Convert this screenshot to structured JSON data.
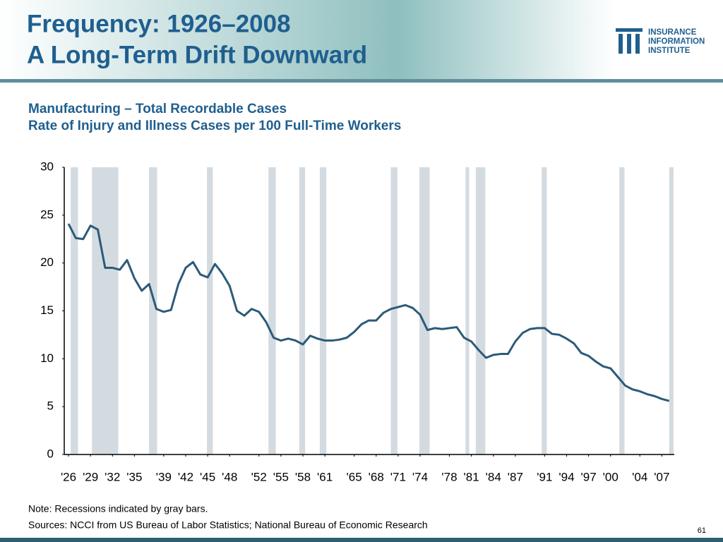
{
  "header": {
    "title_line1": "Frequency: 1926–2008",
    "title_line2": "A Long-Term Drift Downward",
    "logo": [
      "INSURANCE",
      "INFORMATION",
      "INSTITUTE"
    ]
  },
  "chart_data": {
    "type": "line",
    "title": "Manufacturing – Total Recordable Cases",
    "subtitle": "Rate of Injury and Illness Cases per 100 Full-Time Workers",
    "x": [
      1926,
      1927,
      1928,
      1929,
      1930,
      1931,
      1932,
      1933,
      1934,
      1935,
      1936,
      1937,
      1938,
      1939,
      1940,
      1941,
      1942,
      1943,
      1944,
      1945,
      1946,
      1947,
      1948,
      1949,
      1950,
      1951,
      1952,
      1953,
      1954,
      1955,
      1956,
      1957,
      1958,
      1959,
      1960,
      1961,
      1962,
      1963,
      1964,
      1965,
      1966,
      1967,
      1968,
      1969,
      1970,
      1971,
      1972,
      1973,
      1974,
      1975,
      1976,
      1977,
      1978,
      1979,
      1980,
      1981,
      1982,
      1983,
      1984,
      1985,
      1986,
      1987,
      1988,
      1989,
      1990,
      1991,
      1992,
      1993,
      1994,
      1995,
      1996,
      1997,
      1998,
      1999,
      2000,
      2001,
      2002,
      2003,
      2004,
      2005,
      2006,
      2007,
      2008
    ],
    "series": [
      {
        "color": "#2c5a7a",
        "values": [
          24.1,
          22.6,
          22.5,
          23.9,
          23.5,
          19.5,
          19.5,
          19.3,
          20.3,
          18.4,
          17.1,
          17.8,
          15.2,
          14.9,
          15.1,
          17.8,
          19.5,
          20.1,
          18.8,
          18.5,
          19.9,
          18.9,
          17.6,
          15.0,
          14.5,
          15.2,
          14.9,
          13.8,
          12.2,
          11.9,
          12.1,
          11.9,
          11.5,
          12.4,
          12.1,
          11.9,
          11.9,
          12.0,
          12.2,
          12.8,
          13.6,
          14.0,
          14.0,
          14.8,
          15.2,
          15.4,
          15.6,
          15.3,
          14.6,
          13.0,
          13.2,
          13.1,
          13.2,
          13.3,
          12.2,
          11.8,
          10.9,
          10.1,
          10.4,
          10.5,
          10.5,
          11.8,
          12.7,
          13.1,
          13.2,
          13.2,
          12.6,
          12.5,
          12.1,
          11.6,
          10.6,
          10.3,
          9.7,
          9.2,
          9.0,
          8.1,
          7.2,
          6.8,
          6.6,
          6.3,
          6.1,
          5.8,
          5.6
        ]
      }
    ],
    "recessions": [
      [
        1926.3,
        1927.3
      ],
      [
        1929.2,
        1932.8
      ],
      [
        1937.0,
        1938.1
      ],
      [
        1944.9,
        1945.7
      ],
      [
        1953.3,
        1954.3
      ],
      [
        1957.5,
        1958.3
      ],
      [
        1960.3,
        1961.2
      ],
      [
        1970.0,
        1970.9
      ],
      [
        1973.9,
        1975.3
      ],
      [
        1980.2,
        1980.7
      ],
      [
        1981.6,
        1982.9
      ],
      [
        1990.6,
        1991.3
      ],
      [
        2001.2,
        2001.9
      ],
      [
        2008.0,
        2008.6
      ]
    ],
    "recession_color": "#d4dbe0",
    "xlim": [
      1925.42,
      2008.7
    ],
    "xticks": [
      {
        "value": 1926,
        "label": "'26"
      },
      {
        "value": 1929,
        "label": "'29"
      },
      {
        "value": 1932,
        "label": "'32"
      },
      {
        "value": 1935,
        "label": "'35"
      },
      {
        "value": 1939,
        "label": "'39"
      },
      {
        "value": 1942,
        "label": "'42"
      },
      {
        "value": 1945,
        "label": "'45"
      },
      {
        "value": 1948,
        "label": "'48"
      },
      {
        "value": 1952,
        "label": "'52"
      },
      {
        "value": 1955,
        "label": "'55"
      },
      {
        "value": 1958,
        "label": "'58"
      },
      {
        "value": 1961,
        "label": "'61"
      },
      {
        "value": 1965,
        "label": "'65"
      },
      {
        "value": 1968,
        "label": "'68"
      },
      {
        "value": 1971,
        "label": "'71"
      },
      {
        "value": 1974,
        "label": "'74"
      },
      {
        "value": 1978,
        "label": "'78"
      },
      {
        "value": 1981,
        "label": "'81"
      },
      {
        "value": 1984,
        "label": "'84"
      },
      {
        "value": 1987,
        "label": "'87"
      },
      {
        "value": 1991,
        "label": "'91"
      },
      {
        "value": 1994,
        "label": "'94"
      },
      {
        "value": 1997,
        "label": "'97"
      },
      {
        "value": 2000,
        "label": "'00"
      },
      {
        "value": 2004,
        "label": "'04"
      },
      {
        "value": 2007,
        "label": "'07"
      }
    ],
    "ylim": [
      0,
      30
    ],
    "yticks": [
      0,
      5,
      10,
      15,
      20,
      25,
      30
    ],
    "grid": false,
    "note": "Note: Recessions indicated by gray bars.",
    "source": "Sources: NCCI from US Bureau of Labor Statistics;  National Bureau of Economic Research"
  },
  "page_number": "61"
}
